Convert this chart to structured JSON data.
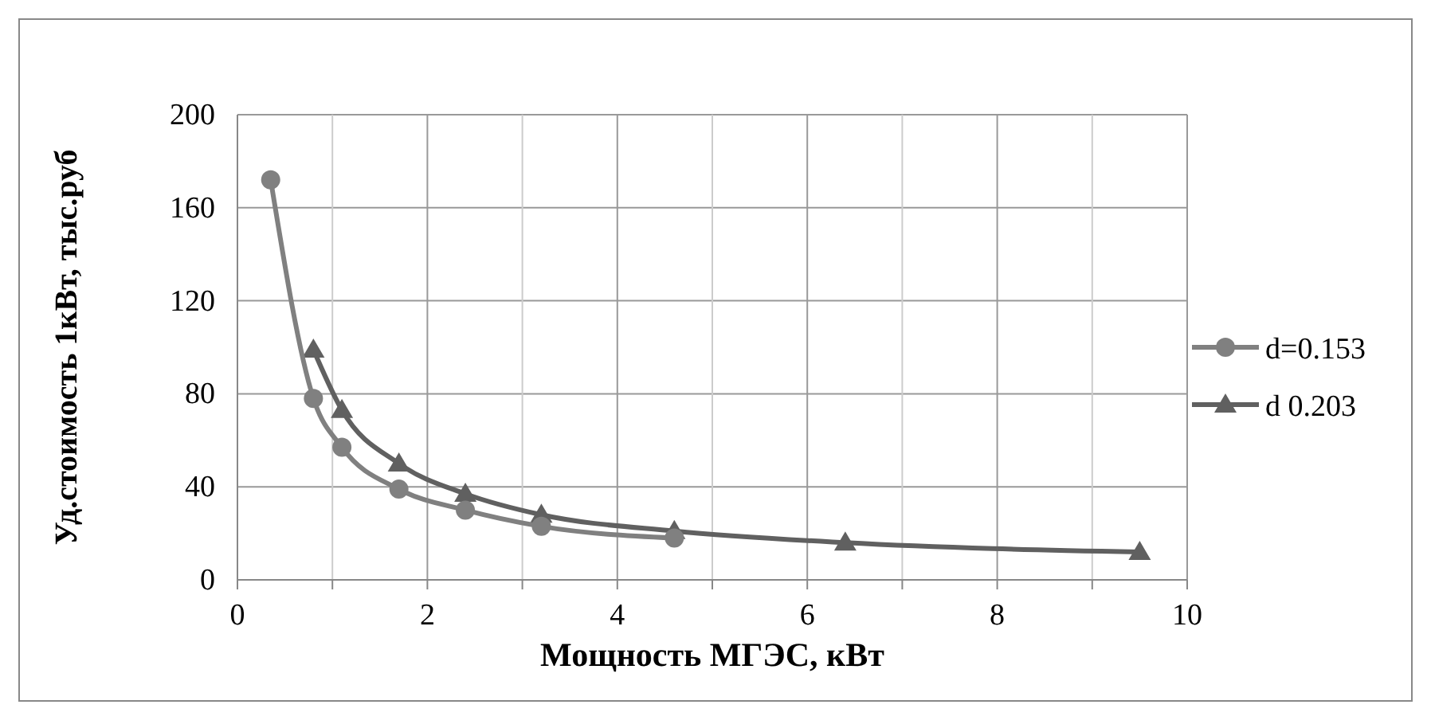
{
  "chart_data": {
    "type": "line",
    "xlabel": "Мощность МГЭС, кВт",
    "ylabel": "Уд.стоимость 1кВт, тыс.руб",
    "xlim": [
      0,
      10
    ],
    "ylim": [
      0,
      200
    ],
    "xticks": [
      0,
      {
        "value": 1,
        "label": null
      },
      2,
      {
        "value": 3,
        "label": null
      },
      4,
      {
        "value": 5,
        "label": null
      },
      6,
      {
        "value": 7,
        "label": null
      },
      8,
      {
        "value": 9,
        "label": null
      },
      10
    ],
    "yticks": [
      0,
      40,
      80,
      120,
      160,
      200
    ],
    "grid": true,
    "legend": "right",
    "series": [
      {
        "name": "d=0.153",
        "color": "#808080",
        "marker": "circle",
        "x": [
          0.35,
          0.8,
          1.1,
          1.7,
          2.4,
          3.2,
          4.6
        ],
        "values": [
          172,
          78,
          57,
          39,
          30,
          23,
          18
        ]
      },
      {
        "name": "d  0.203",
        "color": "#606060",
        "marker": "triangle",
        "x": [
          0.8,
          1.1,
          1.7,
          2.4,
          3.2,
          4.6,
          6.4,
          9.5
        ],
        "values": [
          99,
          73,
          50,
          37,
          28,
          21,
          16,
          12
        ]
      }
    ]
  }
}
